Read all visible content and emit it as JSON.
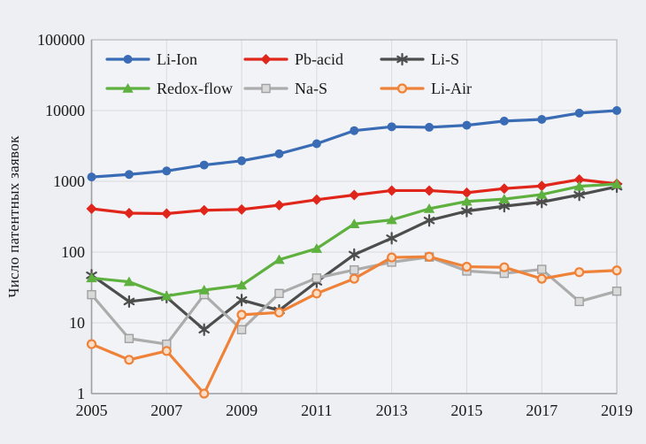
{
  "page": {
    "background": "#EDEFF3",
    "plot_background": "#F2F3F6"
  },
  "chart_data": {
    "type": "line",
    "title": "",
    "xlabel": "",
    "ylabel": "Число патентных заявок",
    "y_scale": "log",
    "ylim": [
      1,
      100000
    ],
    "y_ticks": [
      1,
      10,
      100,
      1000,
      10000,
      100000
    ],
    "x_ticks": [
      2005,
      2007,
      2009,
      2011,
      2013,
      2015,
      2017,
      2019
    ],
    "x": [
      2005,
      2006,
      2007,
      2008,
      2009,
      2010,
      2011,
      2012,
      2013,
      2014,
      2015,
      2016,
      2017,
      2018,
      2019
    ],
    "grid": true,
    "legend_position": "top-inside",
    "legend_rows": [
      [
        "Li-Ion",
        "Pb-acid",
        "Li-S"
      ],
      [
        "Redox-flow",
        "Na-S",
        "Li-Air"
      ]
    ],
    "series": [
      {
        "name": "Li-Ion",
        "color": "#3A6CB5",
        "marker": "circle",
        "values": [
          1150,
          1250,
          1400,
          1700,
          1950,
          2450,
          3400,
          5200,
          5900,
          5800,
          6200,
          7100,
          7500,
          9200,
          10000
        ]
      },
      {
        "name": "Pb-acid",
        "color": "#E0251B",
        "marker": "diamond",
        "values": [
          410,
          355,
          350,
          390,
          400,
          460,
          550,
          640,
          740,
          740,
          690,
          790,
          860,
          1060,
          920
        ]
      },
      {
        "name": "Li-S",
        "color": "#4D4D4D",
        "marker": "asterisk",
        "values": [
          47,
          20,
          23,
          8,
          21,
          15,
          38,
          92,
          157,
          280,
          380,
          445,
          510,
          645,
          840
        ]
      },
      {
        "name": "Redox-flow",
        "color": "#5EB03F",
        "marker": "triangle",
        "values": [
          43,
          38,
          24,
          29,
          34,
          78,
          112,
          250,
          285,
          410,
          520,
          560,
          650,
          850,
          915
        ]
      },
      {
        "name": "Na-S",
        "color": "#ACACAC",
        "marker": "square",
        "values": [
          25,
          6,
          5,
          25,
          8,
          26,
          43,
          56,
          72,
          85,
          54,
          50,
          57,
          20,
          28
        ]
      },
      {
        "name": "Li-Air",
        "color": "#EF8239",
        "marker": "open-circle",
        "values": [
          5,
          3,
          4,
          1,
          13,
          14,
          26,
          42,
          84,
          86,
          62,
          61,
          42,
          52,
          55
        ]
      }
    ]
  }
}
